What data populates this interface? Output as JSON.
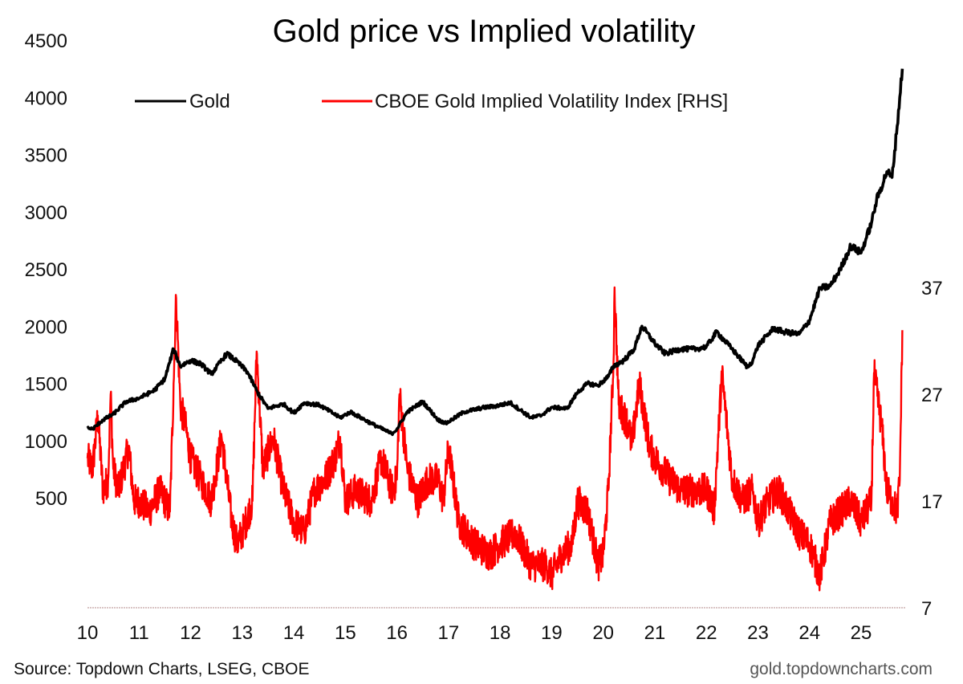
{
  "chart_data": {
    "type": "line",
    "title": "Gold price vs Implied volatility",
    "xlabel": "",
    "ylabel": "",
    "y2label": "",
    "x_tick_labels": [
      "10",
      "11",
      "12",
      "13",
      "14",
      "15",
      "16",
      "17",
      "18",
      "19",
      "20",
      "21",
      "22",
      "23",
      "24",
      "25"
    ],
    "x_range": [
      2010.0,
      2025.8
    ],
    "y_ticks": [
      500,
      1000,
      1500,
      2000,
      2500,
      3000,
      3500,
      4000,
      4500
    ],
    "y_tick_labels": [
      "500",
      "1000",
      "1500",
      "2000",
      "2500",
      "3000",
      "3500",
      "4000",
      "4500"
    ],
    "ylim": [
      -470,
      4500
    ],
    "y2_ticks": [
      7,
      17,
      27,
      37
    ],
    "y2_tick_labels": [
      "7",
      "17",
      "27",
      "37"
    ],
    "y2lim": [
      7,
      37
    ],
    "grid": false,
    "legend_position": "top",
    "series": [
      {
        "name": "Gold",
        "axis": "left",
        "color": "#000000",
        "x": [
          2010.0,
          2010.1,
          2010.3,
          2010.5,
          2010.75,
          2011.0,
          2011.3,
          2011.5,
          2011.67,
          2011.8,
          2012.0,
          2012.2,
          2012.4,
          2012.7,
          2012.9,
          2013.1,
          2013.3,
          2013.5,
          2013.8,
          2014.0,
          2014.2,
          2014.5,
          2014.9,
          2015.1,
          2015.5,
          2015.9,
          2016.0,
          2016.2,
          2016.5,
          2016.8,
          2016.95,
          2017.3,
          2017.7,
          2017.9,
          2018.2,
          2018.6,
          2018.8,
          2019.0,
          2019.3,
          2019.5,
          2019.7,
          2019.9,
          2020.1,
          2020.2,
          2020.4,
          2020.6,
          2020.75,
          2021.0,
          2021.2,
          2021.5,
          2021.8,
          2022.0,
          2022.2,
          2022.5,
          2022.8,
          2022.9,
          2023.0,
          2023.3,
          2023.5,
          2023.8,
          2024.0,
          2024.2,
          2024.4,
          2024.6,
          2024.8,
          2025.0,
          2025.2,
          2025.3,
          2025.5,
          2025.6,
          2025.7,
          2025.8
        ],
        "values": [
          1110,
          1100,
          1180,
          1230,
          1340,
          1370,
          1440,
          1540,
          1800,
          1650,
          1700,
          1670,
          1580,
          1760,
          1690,
          1600,
          1420,
          1280,
          1320,
          1240,
          1330,
          1310,
          1200,
          1250,
          1150,
          1060,
          1100,
          1250,
          1340,
          1180,
          1150,
          1250,
          1290,
          1300,
          1330,
          1200,
          1220,
          1290,
          1280,
          1420,
          1500,
          1480,
          1560,
          1650,
          1700,
          1800,
          2000,
          1850,
          1760,
          1800,
          1800,
          1820,
          1950,
          1800,
          1640,
          1700,
          1830,
          1980,
          1950,
          1930,
          2050,
          2330,
          2350,
          2500,
          2700,
          2640,
          2900,
          3100,
          3350,
          3300,
          3750,
          4250
        ]
      },
      {
        "name": "CBOE Gold Implied Volatility Index [RHS]",
        "axis": "right",
        "color": "#ff0000",
        "x": [
          2010.0,
          2010.1,
          2010.2,
          2010.3,
          2010.4,
          2010.45,
          2010.5,
          2010.6,
          2010.8,
          2010.9,
          2011.0,
          2011.2,
          2011.4,
          2011.6,
          2011.67,
          2011.72,
          2011.8,
          2011.9,
          2012.0,
          2012.2,
          2012.4,
          2012.6,
          2012.8,
          2012.9,
          2013.0,
          2013.2,
          2013.28,
          2013.4,
          2013.6,
          2013.8,
          2014.0,
          2014.2,
          2014.4,
          2014.6,
          2014.8,
          2014.9,
          2015.0,
          2015.2,
          2015.5,
          2015.7,
          2015.9,
          2016.0,
          2016.05,
          2016.2,
          2016.4,
          2016.6,
          2016.8,
          2016.9,
          2017.0,
          2017.2,
          2017.5,
          2017.8,
          2018.0,
          2018.3,
          2018.6,
          2018.9,
          2019.0,
          2019.2,
          2019.4,
          2019.5,
          2019.7,
          2019.9,
          2020.0,
          2020.1,
          2020.2,
          2020.22,
          2020.3,
          2020.5,
          2020.55,
          2020.7,
          2020.9,
          2021.0,
          2021.3,
          2021.5,
          2021.8,
          2022.0,
          2022.1,
          2022.15,
          2022.3,
          2022.5,
          2022.7,
          2022.9,
          2023.0,
          2023.2,
          2023.4,
          2023.6,
          2023.8,
          2024.0,
          2024.2,
          2024.4,
          2024.6,
          2024.8,
          2025.0,
          2025.2,
          2025.25,
          2025.4,
          2025.5,
          2025.6,
          2025.7,
          2025.75,
          2025.8
        ],
        "values": [
          21,
          20,
          25,
          18,
          19,
          27,
          20,
          18,
          22,
          17,
          17,
          16,
          18,
          16,
          28,
          36,
          26,
          24,
          21,
          19,
          17,
          23,
          15,
          13,
          14,
          17,
          31,
          20,
          23,
          18,
          15,
          14,
          18,
          19,
          21,
          23,
          17,
          18,
          17,
          21,
          18,
          19,
          27,
          20,
          17,
          19,
          19,
          17,
          22,
          15,
          13,
          12,
          13,
          14,
          11,
          11,
          10,
          12,
          13,
          17,
          16,
          11,
          12,
          18,
          30,
          37,
          26,
          24,
          22,
          28,
          22,
          21,
          19,
          18,
          18,
          18,
          17,
          16,
          29,
          19,
          17,
          18,
          15,
          17,
          18,
          16,
          14,
          13,
          10,
          15,
          16,
          17,
          15,
          17,
          29,
          24,
          18,
          17,
          16,
          19,
          33
        ]
      }
    ]
  },
  "legend": {
    "items": [
      {
        "label": "Gold",
        "color": "#000000"
      },
      {
        "label": "CBOE Gold Implied Volatility Index [RHS]",
        "color": "#ff0000"
      }
    ]
  },
  "footer": {
    "source": "Source: Topdown Charts, LSEG, CBOE",
    "website": "gold.topdowncharts.com"
  }
}
